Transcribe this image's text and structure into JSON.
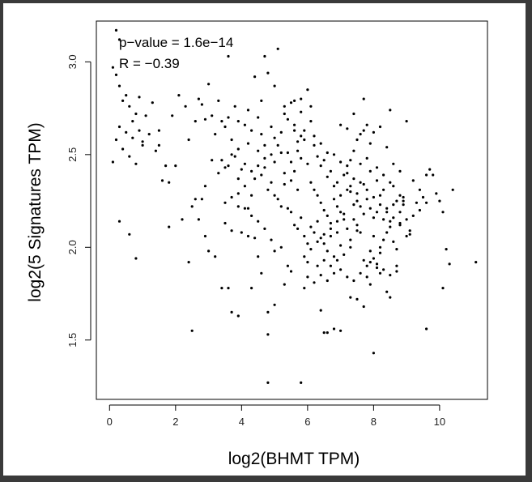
{
  "chart_data": {
    "type": "scatter",
    "xlabel": "log2(BHMT TPM)",
    "ylabel": "log2(5 Signatures TPM)",
    "xlim": [
      -0.4,
      11.45
    ],
    "ylim": [
      1.18,
      3.22
    ],
    "x_ticks": [
      0,
      2,
      4,
      6,
      8,
      10
    ],
    "y_ticks": [
      1.5,
      2.0,
      2.5,
      3.0
    ],
    "x_tick_labels": [
      "0",
      "2",
      "4",
      "6",
      "8",
      "10"
    ],
    "y_tick_labels": [
      "1.5",
      "2.0",
      "2.5",
      "3.0"
    ],
    "annotations": [
      "p−value = 1.6e−14",
      "R = −0.39"
    ],
    "point_color": "#000000",
    "points": [
      [
        0.2,
        3.17
      ],
      [
        0.3,
        3.12
      ],
      [
        0.1,
        2.97
      ],
      [
        0.2,
        2.93
      ],
      [
        0.3,
        2.87
      ],
      [
        0.5,
        2.82
      ],
      [
        0.4,
        2.79
      ],
      [
        0.6,
        2.76
      ],
      [
        0.9,
        2.81
      ],
      [
        0.8,
        2.72
      ],
      [
        0.7,
        2.68
      ],
      [
        0.5,
        2.62
      ],
      [
        0.3,
        2.65
      ],
      [
        0.2,
        2.58
      ],
      [
        0.4,
        2.53
      ],
      [
        0.6,
        2.49
      ],
      [
        0.8,
        2.45
      ],
      [
        1.0,
        2.55
      ],
      [
        1.2,
        2.61
      ],
      [
        1.4,
        2.52
      ],
      [
        1.5,
        2.55
      ],
      [
        1.7,
        2.44
      ],
      [
        1.1,
        2.71
      ],
      [
        1.3,
        2.78
      ],
      [
        1.6,
        2.36
      ],
      [
        1.8,
        2.35
      ],
      [
        2.0,
        2.44
      ],
      [
        2.1,
        2.82
      ],
      [
        2.3,
        2.76
      ],
      [
        0.1,
        2.46
      ],
      [
        0.3,
        2.14
      ],
      [
        0.6,
        2.07
      ],
      [
        0.8,
        1.94
      ],
      [
        1.8,
        2.11
      ],
      [
        2.2,
        2.15
      ],
      [
        2.4,
        1.92
      ],
      [
        2.5,
        2.22
      ],
      [
        2.6,
        2.26
      ],
      [
        2.5,
        1.55
      ],
      [
        2.7,
        2.8
      ],
      [
        2.8,
        2.77
      ],
      [
        2.9,
        2.69
      ],
      [
        3.0,
        2.88
      ],
      [
        3.1,
        2.71
      ],
      [
        3.2,
        2.61
      ],
      [
        3.3,
        2.79
      ],
      [
        3.4,
        2.68
      ],
      [
        3.5,
        2.65
      ],
      [
        3.6,
        2.7
      ],
      [
        3.7,
        2.58
      ],
      [
        3.4,
        2.47
      ],
      [
        3.6,
        2.44
      ],
      [
        3.8,
        2.49
      ],
      [
        3.9,
        2.37
      ],
      [
        4.0,
        2.42
      ],
      [
        4.1,
        2.33
      ],
      [
        4.2,
        2.21
      ],
      [
        3.9,
        2.29
      ],
      [
        3.7,
        2.27
      ],
      [
        3.5,
        2.24
      ],
      [
        3.3,
        2.4
      ],
      [
        3.1,
        2.47
      ],
      [
        2.9,
        2.33
      ],
      [
        2.8,
        2.26
      ],
      [
        2.7,
        2.15
      ],
      [
        2.9,
        2.06
      ],
      [
        3.0,
        1.98
      ],
      [
        3.2,
        1.95
      ],
      [
        3.4,
        1.78
      ],
      [
        3.6,
        1.78
      ],
      [
        3.7,
        1.65
      ],
      [
        3.9,
        1.63
      ],
      [
        4.0,
        2.08
      ],
      [
        4.2,
        2.06
      ],
      [
        4.3,
        1.78
      ],
      [
        4.4,
        2.05
      ],
      [
        4.5,
        1.95
      ],
      [
        4.6,
        1.86
      ],
      [
        4.8,
        1.65
      ],
      [
        4.8,
        1.53
      ],
      [
        4.8,
        1.27
      ],
      [
        5.0,
        1.69
      ],
      [
        5.3,
        1.8
      ],
      [
        5.5,
        1.87
      ],
      [
        5.8,
        1.27
      ],
      [
        5.9,
        1.78
      ],
      [
        6.0,
        1.92
      ],
      [
        6.3,
        1.9
      ],
      [
        6.4,
        1.66
      ],
      [
        6.5,
        1.54
      ],
      [
        6.6,
        1.54
      ],
      [
        6.8,
        1.56
      ],
      [
        7.0,
        1.55
      ],
      [
        7.3,
        1.73
      ],
      [
        7.5,
        1.72
      ],
      [
        7.7,
        1.68
      ],
      [
        7.9,
        1.8
      ],
      [
        8.0,
        1.43
      ],
      [
        8.2,
        1.86
      ],
      [
        8.4,
        1.76
      ],
      [
        8.5,
        1.73
      ],
      [
        8.7,
        1.87
      ],
      [
        3.6,
        3.03
      ],
      [
        4.4,
        2.92
      ],
      [
        4.6,
        2.79
      ],
      [
        4.7,
        3.03
      ],
      [
        4.8,
        2.94
      ],
      [
        5.0,
        2.87
      ],
      [
        5.1,
        3.07
      ],
      [
        5.3,
        2.76
      ],
      [
        5.5,
        2.78
      ],
      [
        5.6,
        2.79
      ],
      [
        5.8,
        2.8
      ],
      [
        6.0,
        2.85
      ],
      [
        6.1,
        2.76
      ],
      [
        4.2,
        2.74
      ],
      [
        4.3,
        2.63
      ],
      [
        4.5,
        2.7
      ],
      [
        4.6,
        2.61
      ],
      [
        4.7,
        2.55
      ],
      [
        4.9,
        2.65
      ],
      [
        5.0,
        2.59
      ],
      [
        5.2,
        2.62
      ],
      [
        5.4,
        2.51
      ],
      [
        5.6,
        2.63
      ],
      [
        5.8,
        2.6
      ],
      [
        5.9,
        2.58
      ],
      [
        6.1,
        2.68
      ],
      [
        6.2,
        2.55
      ],
      [
        6.3,
        2.49
      ],
      [
        6.4,
        2.44
      ],
      [
        6.5,
        2.47
      ],
      [
        6.6,
        2.38
      ],
      [
        6.7,
        2.41
      ],
      [
        6.8,
        2.33
      ],
      [
        6.9,
        2.35
      ],
      [
        7.0,
        2.28
      ],
      [
        7.1,
        2.39
      ],
      [
        7.2,
        2.31
      ],
      [
        7.3,
        2.33
      ],
      [
        7.4,
        2.23
      ],
      [
        7.5,
        2.29
      ],
      [
        7.6,
        2.22
      ],
      [
        7.7,
        2.18
      ],
      [
        7.8,
        2.26
      ],
      [
        7.9,
        2.21
      ],
      [
        8.0,
        2.16
      ],
      [
        8.1,
        2.19
      ],
      [
        8.2,
        2.28
      ],
      [
        8.3,
        2.15
      ],
      [
        8.4,
        2.21
      ],
      [
        8.5,
        2.14
      ],
      [
        8.6,
        2.23
      ],
      [
        8.7,
        2.25
      ],
      [
        8.8,
        2.19
      ],
      [
        8.9,
        2.27
      ],
      [
        4.3,
        2.28
      ],
      [
        4.4,
        2.37
      ],
      [
        4.5,
        2.44
      ],
      [
        4.6,
        2.39
      ],
      [
        4.7,
        2.43
      ],
      [
        4.8,
        2.31
      ],
      [
        4.9,
        2.35
      ],
      [
        5.0,
        2.28
      ],
      [
        5.1,
        2.26
      ],
      [
        5.2,
        2.22
      ],
      [
        5.3,
        2.34
      ],
      [
        5.4,
        2.21
      ],
      [
        5.5,
        2.19
      ],
      [
        5.6,
        2.12
      ],
      [
        5.7,
        2.1
      ],
      [
        5.8,
        2.16
      ],
      [
        5.9,
        2.06
      ],
      [
        6.0,
        2.02
      ],
      [
        6.1,
        2.11
      ],
      [
        6.2,
        2.08
      ],
      [
        6.3,
        2.14
      ],
      [
        6.4,
        2.05
      ],
      [
        6.5,
        2.02
      ],
      [
        6.6,
        1.98
      ],
      [
        6.7,
        2.06
      ],
      [
        6.8,
        1.95
      ],
      [
        6.9,
        2.08
      ],
      [
        7.0,
        2.01
      ],
      [
        7.1,
        1.96
      ],
      [
        7.2,
        2.1
      ],
      [
        7.3,
        2.04
      ],
      [
        7.4,
        2.15
      ],
      [
        7.5,
        2.12
      ],
      [
        7.6,
        2.08
      ],
      [
        7.7,
        1.93
      ],
      [
        7.8,
        1.9
      ],
      [
        7.9,
        1.98
      ],
      [
        8.0,
        2.06
      ],
      [
        8.1,
        1.91
      ],
      [
        8.2,
        2.0
      ],
      [
        8.3,
        2.04
      ],
      [
        8.4,
        2.08
      ],
      [
        8.5,
        2.11
      ],
      [
        8.6,
        2.03
      ],
      [
        8.7,
        1.99
      ],
      [
        8.8,
        2.13
      ],
      [
        9.0,
        2.15
      ],
      [
        9.1,
        2.09
      ],
      [
        9.2,
        2.17
      ],
      [
        9.3,
        2.24
      ],
      [
        9.4,
        2.2
      ],
      [
        9.5,
        2.27
      ],
      [
        9.6,
        2.24
      ],
      [
        9.7,
        2.42
      ],
      [
        9.8,
        2.39
      ],
      [
        9.9,
        2.29
      ],
      [
        10.0,
        2.25
      ],
      [
        10.1,
        2.19
      ],
      [
        10.2,
        1.99
      ],
      [
        10.3,
        1.91
      ],
      [
        10.4,
        2.31
      ],
      [
        11.1,
        1.92
      ],
      [
        9.6,
        1.56
      ],
      [
        10.1,
        1.78
      ],
      [
        5.5,
        2.46
      ],
      [
        5.6,
        2.41
      ],
      [
        5.7,
        2.52
      ],
      [
        5.8,
        2.48
      ],
      [
        6.0,
        2.45
      ],
      [
        6.1,
        2.35
      ],
      [
        6.2,
        2.31
      ],
      [
        6.3,
        2.28
      ],
      [
        6.4,
        2.24
      ],
      [
        6.5,
        2.2
      ],
      [
        6.6,
        2.17
      ],
      [
        6.7,
        2.13
      ],
      [
        6.8,
        2.26
      ],
      [
        6.9,
        2.22
      ],
      [
        7.0,
        2.19
      ],
      [
        7.1,
        2.15
      ],
      [
        7.2,
        2.4
      ],
      [
        7.3,
        2.47
      ],
      [
        7.4,
        2.52
      ],
      [
        7.5,
        2.58
      ],
      [
        7.6,
        2.61
      ],
      [
        7.7,
        2.63
      ],
      [
        7.8,
        2.66
      ],
      [
        7.9,
        2.56
      ],
      [
        8.0,
        2.62
      ],
      [
        8.2,
        2.65
      ],
      [
        8.4,
        2.54
      ],
      [
        8.6,
        2.45
      ],
      [
        8.8,
        2.41
      ],
      [
        9.0,
        2.68
      ],
      [
        9.2,
        2.36
      ],
      [
        9.4,
        2.31
      ],
      [
        9.6,
        2.39
      ],
      [
        7.0,
        2.66
      ],
      [
        7.2,
        2.64
      ],
      [
        7.4,
        2.72
      ],
      [
        7.6,
        2.45
      ],
      [
        7.8,
        2.48
      ],
      [
        8.1,
        2.43
      ],
      [
        8.3,
        2.39
      ],
      [
        8.5,
        2.35
      ],
      [
        8.6,
        2.33
      ],
      [
        8.8,
        2.28
      ],
      [
        8.9,
        2.25
      ],
      [
        8.3,
        2.31
      ],
      [
        8.1,
        2.36
      ],
      [
        7.9,
        2.41
      ],
      [
        7.7,
        2.34
      ],
      [
        7.5,
        2.25
      ],
      [
        7.3,
        2.3
      ],
      [
        7.1,
        2.18
      ],
      [
        6.9,
        2.14
      ],
      [
        6.7,
        2.1
      ],
      [
        6.5,
        2.07
      ],
      [
        6.3,
        2.03
      ],
      [
        6.1,
        1.99
      ],
      [
        5.9,
        1.95
      ],
      [
        5.7,
        2.31
      ],
      [
        5.5,
        2.36
      ],
      [
        5.3,
        2.4
      ],
      [
        5.2,
        2.51
      ],
      [
        5.1,
        2.55
      ],
      [
        5.0,
        2.46
      ],
      [
        4.9,
        2.5
      ],
      [
        4.7,
        2.48
      ],
      [
        4.5,
        2.52
      ],
      [
        4.3,
        2.41
      ],
      [
        4.1,
        2.45
      ],
      [
        3.9,
        2.53
      ],
      [
        3.7,
        2.5
      ],
      [
        3.5,
        2.43
      ],
      [
        8.0,
        1.94
      ],
      [
        8.1,
        1.89
      ],
      [
        7.9,
        1.92
      ],
      [
        7.8,
        1.84
      ],
      [
        8.2,
        1.97
      ],
      [
        8.3,
        1.88
      ],
      [
        8.5,
        1.85
      ],
      [
        8.7,
        1.9
      ],
      [
        7.6,
        1.86
      ],
      [
        7.4,
        1.82
      ],
      [
        7.2,
        1.84
      ],
      [
        7.0,
        1.88
      ],
      [
        6.8,
        1.86
      ],
      [
        6.6,
        1.82
      ],
      [
        6.4,
        1.85
      ],
      [
        6.2,
        1.81
      ],
      [
        6.0,
        1.84
      ],
      [
        5.4,
        1.9
      ],
      [
        5.2,
        2.0
      ],
      [
        5.0,
        1.98
      ],
      [
        4.9,
        2.04
      ],
      [
        4.7,
        2.1
      ],
      [
        4.5,
        2.14
      ],
      [
        4.3,
        2.17
      ],
      [
        4.1,
        2.21
      ],
      [
        3.9,
        2.22
      ],
      [
        3.7,
        2.09
      ],
      [
        3.5,
        2.13
      ],
      [
        5.7,
        2.57
      ],
      [
        5.9,
        2.63
      ],
      [
        6.2,
        2.6
      ],
      [
        6.4,
        2.56
      ],
      [
        6.6,
        2.51
      ],
      [
        6.8,
        2.5
      ],
      [
        7.0,
        2.46
      ],
      [
        7.2,
        2.44
      ],
      [
        7.4,
        2.37
      ],
      [
        7.6,
        2.35
      ],
      [
        7.8,
        2.31
      ],
      [
        8.0,
        2.27
      ],
      [
        8.2,
        2.23
      ],
      [
        8.4,
        2.19
      ],
      [
        8.6,
        2.16
      ],
      [
        8.8,
        2.12
      ],
      [
        9.0,
        2.06
      ],
      [
        7.7,
        2.8
      ],
      [
        8.5,
        2.74
      ],
      [
        9.1,
        2.07
      ],
      [
        8.9,
        2.23
      ],
      [
        7.5,
        2.09
      ],
      [
        7.3,
        2.0
      ],
      [
        6.9,
        1.93
      ],
      [
        6.7,
        1.9
      ],
      [
        6.5,
        1.93
      ],
      [
        5.3,
        2.72
      ],
      [
        5.4,
        2.69
      ],
      [
        5.6,
        2.66
      ],
      [
        5.8,
        2.73
      ],
      [
        4.1,
        2.66
      ],
      [
        3.9,
        2.68
      ],
      [
        3.8,
        2.76
      ],
      [
        2.6,
        2.68
      ],
      [
        2.4,
        2.58
      ],
      [
        1.9,
        2.71
      ],
      [
        1.5,
        2.63
      ],
      [
        1.0,
        2.57
      ],
      [
        0.9,
        2.63
      ],
      [
        0.7,
        2.59
      ],
      [
        4.2,
        2.56
      ]
    ]
  }
}
